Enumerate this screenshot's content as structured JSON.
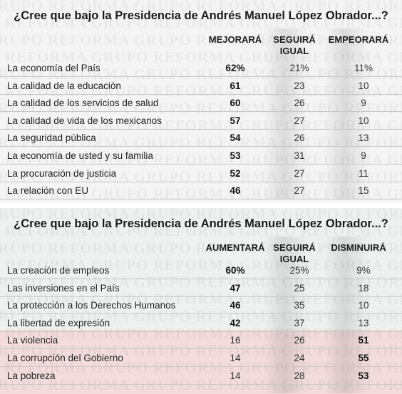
{
  "chart_data": [
    {
      "type": "table",
      "title": "¿Cree que bajo la Presidencia de Andrés Manuel López Obrador...?",
      "columns": [
        "MEJORARÁ",
        "SEGUIRÁ IGUAL",
        "EMPEORARÁ"
      ],
      "rows": [
        {
          "label": "La economía del País",
          "values": [
            "62%",
            "21%",
            "11%"
          ]
        },
        {
          "label": "La calidad de la educación",
          "values": [
            "61",
            "23",
            "10"
          ]
        },
        {
          "label": "La calidad de los servicios de salud",
          "values": [
            "60",
            "26",
            "9"
          ]
        },
        {
          "label": "La calidad de vida de los mexicanos",
          "values": [
            "57",
            "27",
            "10"
          ]
        },
        {
          "label": "La seguridad pública",
          "values": [
            "54",
            "26",
            "13"
          ]
        },
        {
          "label": "La economía de usted y su familia",
          "values": [
            "53",
            "31",
            "9"
          ]
        },
        {
          "label": "La procuración de justicia",
          "values": [
            "52",
            "27",
            "11"
          ]
        },
        {
          "label": "La relación con EU",
          "values": [
            "46",
            "27",
            "15"
          ]
        }
      ]
    },
    {
      "type": "table",
      "title": "¿Cree que bajo la Presidencia de Andrés Manuel López Obrador...?",
      "columns": [
        "AUMENTARÁ",
        "SEGUIRÁ IGUAL",
        "DISMINUIRÁ"
      ],
      "rows": [
        {
          "label": "La creación de empleos",
          "values": [
            "60%",
            "25%",
            "9%"
          ],
          "bold_col": 0
        },
        {
          "label": "Las inversiones en el País",
          "values": [
            "47",
            "25",
            "18"
          ],
          "bold_col": 0
        },
        {
          "label": "La protección a los Derechos Humanos",
          "values": [
            "46",
            "35",
            "10"
          ],
          "bold_col": 0
        },
        {
          "label": "La libertad de expresión",
          "values": [
            "42",
            "37",
            "13"
          ],
          "bold_col": 0
        },
        {
          "label": "La violencia",
          "values": [
            "16",
            "26",
            "51"
          ],
          "bold_col": 2
        },
        {
          "label": "La corrupción del Gobierno",
          "values": [
            "14",
            "24",
            "55"
          ],
          "bold_col": 2
        },
        {
          "label": "La pobreza",
          "values": [
            "14",
            "28",
            "53"
          ],
          "bold_col": 2
        }
      ]
    }
  ],
  "watermark": "GRUPO REFORMA",
  "colors": {
    "top_bg": "#f4f4f4",
    "bottom_bg": "#eef1ef",
    "negative_band": "#f2dcdc"
  }
}
